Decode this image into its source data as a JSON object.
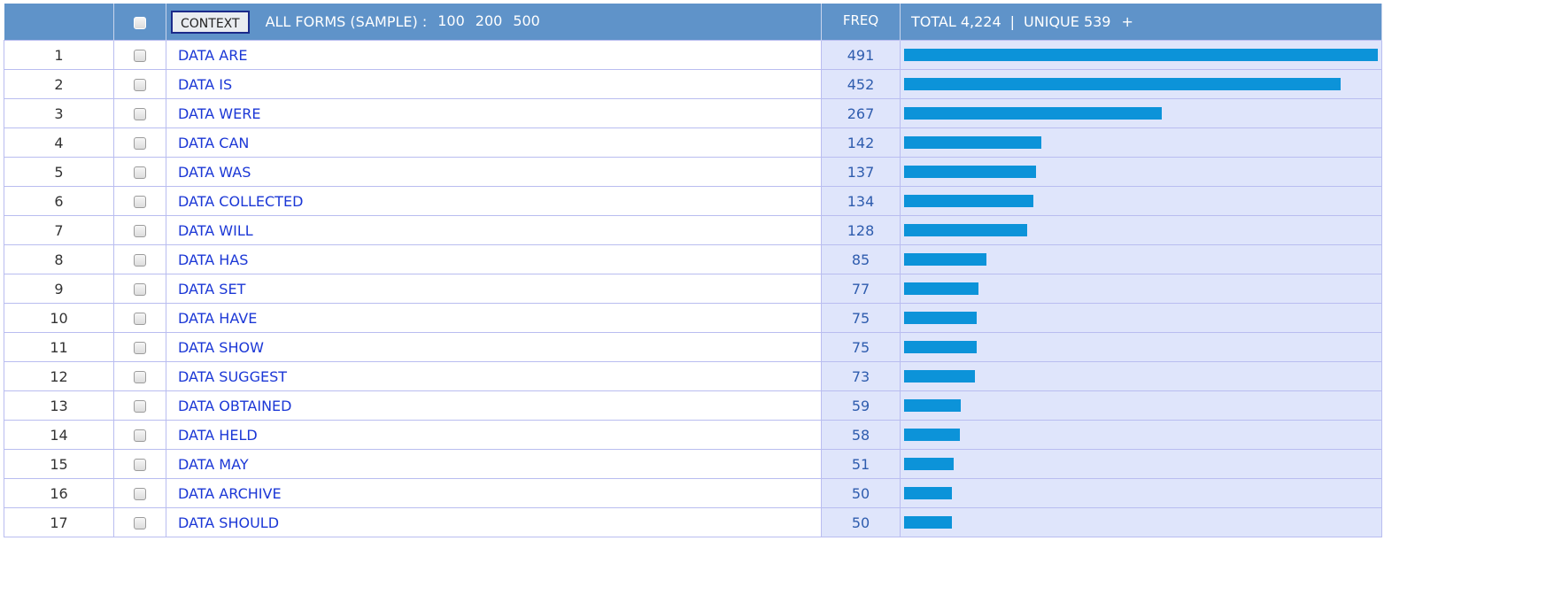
{
  "header": {
    "context_button": "CONTEXT",
    "all_forms_label": "ALL FORMS  (SAMPLE) :",
    "sample_sizes": [
      "100",
      "200",
      "500"
    ],
    "freq_label": "FREQ",
    "total_label": "TOTAL 4,224",
    "separator": "|",
    "unique_label": "UNIQUE 539",
    "plus_label": "+"
  },
  "colors": {
    "header_bg": "#5f93c9",
    "bar_color": "#0c93d9",
    "link_color": "#1b37d6",
    "freq_bg": "#dfe5fb"
  },
  "rows": [
    {
      "rank": "1",
      "form": "DATA ARE",
      "freq": "491"
    },
    {
      "rank": "2",
      "form": "DATA IS",
      "freq": "452"
    },
    {
      "rank": "3",
      "form": "DATA WERE",
      "freq": "267"
    },
    {
      "rank": "4",
      "form": "DATA CAN",
      "freq": "142"
    },
    {
      "rank": "5",
      "form": "DATA WAS",
      "freq": "137"
    },
    {
      "rank": "6",
      "form": "DATA COLLECTED",
      "freq": "134"
    },
    {
      "rank": "7",
      "form": "DATA WILL",
      "freq": "128"
    },
    {
      "rank": "8",
      "form": "DATA HAS",
      "freq": "85"
    },
    {
      "rank": "9",
      "form": "DATA SET",
      "freq": "77"
    },
    {
      "rank": "10",
      "form": "DATA HAVE",
      "freq": "75"
    },
    {
      "rank": "11",
      "form": "DATA SHOW",
      "freq": "75"
    },
    {
      "rank": "12",
      "form": "DATA SUGGEST",
      "freq": "73"
    },
    {
      "rank": "13",
      "form": "DATA OBTAINED",
      "freq": "59"
    },
    {
      "rank": "14",
      "form": "DATA HELD",
      "freq": "58"
    },
    {
      "rank": "15",
      "form": "DATA MAY",
      "freq": "51"
    },
    {
      "rank": "16",
      "form": "DATA ARCHIVE",
      "freq": "50"
    },
    {
      "rank": "17",
      "form": "DATA SHOULD",
      "freq": "50"
    }
  ]
}
